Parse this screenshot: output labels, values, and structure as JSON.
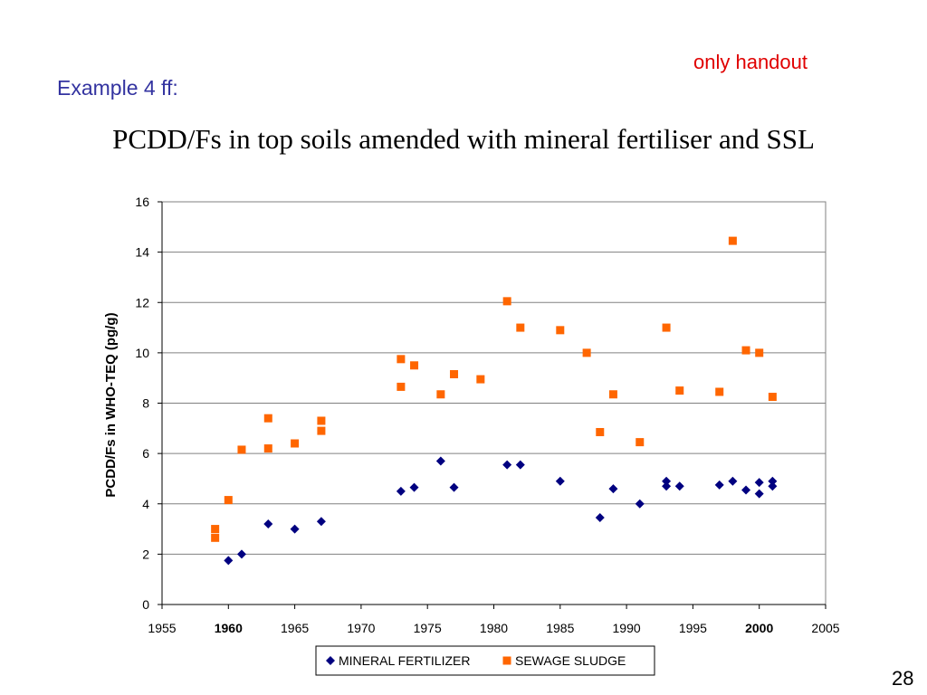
{
  "slide": {
    "note": "only handout",
    "note_color": "#e00000",
    "subtitle": "Example 4 ff:",
    "subtitle_color": "#3333a0",
    "title": "PCDD/Fs in top soils amended with mineral fertiliser and SSL",
    "page_number": "28"
  },
  "chart_data": {
    "type": "scatter",
    "title": "",
    "xlabel": "",
    "ylabel": "PCDD/Fs in WHO-TEQ  (pg/g)",
    "xlim": [
      1955,
      2005
    ],
    "ylim": [
      0,
      16
    ],
    "x_ticks": [
      1955,
      1960,
      1965,
      1970,
      1975,
      1980,
      1985,
      1990,
      1995,
      2000,
      2005
    ],
    "x_ticks_bold": [
      1960,
      2000
    ],
    "y_ticks": [
      0,
      2,
      4,
      6,
      8,
      10,
      12,
      14,
      16
    ],
    "grid": "horizontal",
    "legend_position": "bottom",
    "series": [
      {
        "name": "MINERAL FERTILIZER",
        "marker": "diamond",
        "color": "#000080",
        "points": [
          [
            1960,
            1.75
          ],
          [
            1961,
            2.0
          ],
          [
            1963,
            3.2
          ],
          [
            1965,
            3.0
          ],
          [
            1967,
            3.3
          ],
          [
            1973,
            4.5
          ],
          [
            1974,
            4.65
          ],
          [
            1976,
            5.7
          ],
          [
            1977,
            4.65
          ],
          [
            1981,
            5.55
          ],
          [
            1982,
            5.55
          ],
          [
            1985,
            4.9
          ],
          [
            1988,
            3.45
          ],
          [
            1989,
            4.6
          ],
          [
            1991,
            4.0
          ],
          [
            1993,
            4.9
          ],
          [
            1993,
            4.7
          ],
          [
            1994,
            4.7
          ],
          [
            1997,
            4.75
          ],
          [
            1998,
            4.9
          ],
          [
            1999,
            4.55
          ],
          [
            2000,
            4.85
          ],
          [
            2000,
            4.4
          ],
          [
            2001,
            4.9
          ],
          [
            2001,
            4.7
          ]
        ]
      },
      {
        "name": "SEWAGE SLUDGE",
        "marker": "square",
        "color": "#ff6600",
        "points": [
          [
            1959,
            3.0
          ],
          [
            1959,
            2.65
          ],
          [
            1960,
            4.15
          ],
          [
            1961,
            6.15
          ],
          [
            1963,
            7.4
          ],
          [
            1963,
            6.2
          ],
          [
            1965,
            6.4
          ],
          [
            1967,
            7.3
          ],
          [
            1967,
            6.9
          ],
          [
            1973,
            9.75
          ],
          [
            1973,
            8.65
          ],
          [
            1974,
            9.5
          ],
          [
            1976,
            8.35
          ],
          [
            1977,
            9.15
          ],
          [
            1979,
            8.95
          ],
          [
            1981,
            12.05
          ],
          [
            1982,
            11.0
          ],
          [
            1985,
            10.9
          ],
          [
            1987,
            10.0
          ],
          [
            1988,
            6.85
          ],
          [
            1989,
            8.35
          ],
          [
            1991,
            6.45
          ],
          [
            1993,
            11.0
          ],
          [
            1994,
            8.5
          ],
          [
            1997,
            8.45
          ],
          [
            1998,
            14.45
          ],
          [
            1999,
            10.1
          ],
          [
            2000,
            10.0
          ],
          [
            2001,
            8.25
          ]
        ]
      }
    ]
  }
}
